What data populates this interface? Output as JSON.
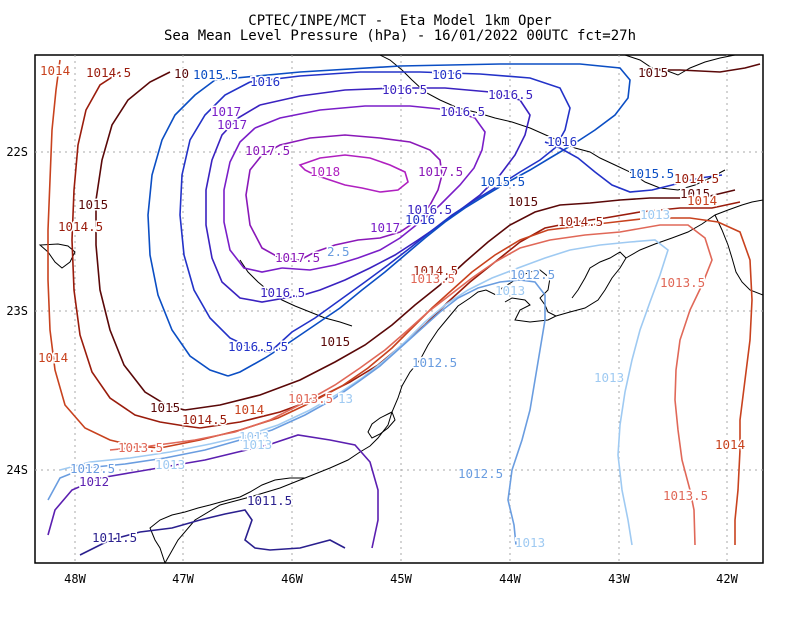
{
  "title": {
    "line1": "CPTEC/INPE/MCT -  Eta Model 1km Oper",
    "line2": "Sea Mean Level Pressure (hPa) - 16/01/2022 00UTC fct=27h"
  },
  "axes": {
    "x_ticks": [
      "48W",
      "47W",
      "46W",
      "45W",
      "44W",
      "43W",
      "42W"
    ],
    "y_ticks": [
      "22S",
      "23S",
      "24S"
    ]
  },
  "colors": {
    "1011.5": "#2a1f8e",
    "1012": "#5b1fb0",
    "1012.5": "#6a9de0",
    "1013": "#9fcaf2",
    "1013.5": "#e06858",
    "1014": "#c8421e",
    "1014.5": "#9a1c0c",
    "1015": "#5a0808",
    "1015.5": "#0b4ec4",
    "1016": "#2332c8",
    "1016.5": "#3a22c0",
    "1017": "#7a1ec8",
    "1017.5": "#8a18b8",
    "1018": "#b020c0",
    "coast": "#000000",
    "grid": "#a0a0a0"
  },
  "contour_labels": [
    {
      "text": "1014",
      "level": "1014"
    },
    {
      "text": "1014.5",
      "level": "1014.5"
    },
    {
      "text": "10",
      "level": "1015"
    },
    {
      "text": "1015.5",
      "level": "1015.5"
    },
    {
      "text": "1016",
      "level": "1016"
    },
    {
      "text": "1016",
      "level": "1016"
    },
    {
      "text": "1015",
      "level": "1015"
    },
    {
      "text": "1016.5",
      "level": "1016.5"
    },
    {
      "text": "1016.5",
      "level": "1016.5"
    },
    {
      "text": "1017",
      "level": "1017"
    },
    {
      "text": "1016.5",
      "level": "1016.5"
    },
    {
      "text": "1017",
      "level": "1017"
    },
    {
      "text": "1016",
      "level": "1016"
    },
    {
      "text": "1017.5",
      "level": "1017.5"
    },
    {
      "text": "1018",
      "level": "1018"
    },
    {
      "text": "1017.5",
      "level": "1017.5"
    },
    {
      "text": "1015.5",
      "level": "1015.5"
    },
    {
      "text": "1015.5",
      "level": "1015.5"
    },
    {
      "text": "1014.5",
      "level": "1014.5"
    },
    {
      "text": "1015",
      "level": "1015"
    },
    {
      "text": "1015",
      "level": "1015"
    },
    {
      "text": "1014.5",
      "level": "1014.5"
    },
    {
      "text": "1014",
      "level": "1014"
    },
    {
      "text": "1016.5",
      "level": "1016.5"
    },
    {
      "text": "1017",
      "level": "1017"
    },
    {
      "text": "1016",
      "level": "1016"
    },
    {
      "text": "1017.5",
      "level": "1017.5"
    },
    {
      "text": "2.5",
      "level": "1012.5"
    },
    {
      "text": "1014.5",
      "level": "1014.5"
    },
    {
      "text": "1014.5",
      "level": "1014.5"
    },
    {
      "text": "1013",
      "level": "1013"
    },
    {
      "text": "1015",
      "level": "1015"
    },
    {
      "text": "1015",
      "level": "1015"
    },
    {
      "text": "1016.5",
      "level": "1016.5"
    },
    {
      "text": "1016.5.5",
      "level": "1016"
    },
    {
      "text": "1012.5",
      "level": "1012.5"
    },
    {
      "text": "1013",
      "level": "1013"
    },
    {
      "text": "1013.5",
      "level": "1013.5"
    },
    {
      "text": "1014",
      "level": "1014"
    },
    {
      "text": "1014",
      "level": "1014"
    },
    {
      "text": "1015",
      "level": "1015"
    },
    {
      "text": "1014.5",
      "level": "1014.5"
    },
    {
      "text": "1013.5",
      "level": "1013.5"
    },
    {
      "text": "13",
      "level": "1013"
    },
    {
      "text": "1012.5",
      "level": "1012.5"
    },
    {
      "text": "1013.5",
      "level": "1013.5"
    },
    {
      "text": "1013",
      "level": "1013"
    },
    {
      "text": "1013.5",
      "level": "1013.5"
    },
    {
      "text": "1014",
      "level": "1014"
    },
    {
      "text": "1013",
      "level": "1013"
    },
    {
      "text": "1013.5",
      "level": "1013.5"
    },
    {
      "text": "1013",
      "level": "1013"
    },
    {
      "text": "1012.5",
      "level": "1012.5"
    },
    {
      "text": "1013",
      "level": "1013"
    },
    {
      "text": "1012",
      "level": "1012"
    },
    {
      "text": "1012.5",
      "level": "1012.5"
    },
    {
      "text": "1011.5",
      "level": "1011.5"
    },
    {
      "text": "1011.5",
      "level": "1011.5"
    },
    {
      "text": "1013",
      "level": "1013"
    }
  ]
}
